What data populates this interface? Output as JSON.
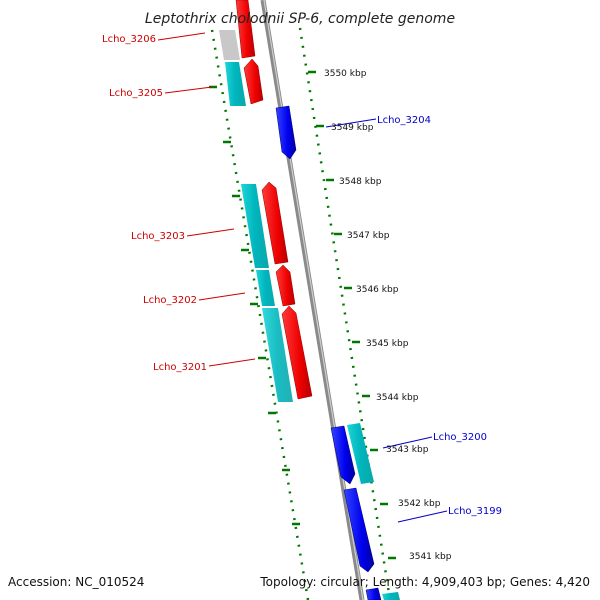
{
  "title": "Leptothrix cholodnii SP-6, complete genome",
  "footer": {
    "accession": "Accession: NC_010524",
    "summary": "Topology: circular; Length: 4,909,403 bp; Genes: 4,420"
  },
  "scale_labels": [
    "3550 kbp",
    "3549 kbp",
    "3548 kbp",
    "3547 kbp",
    "3546 kbp",
    "3545 kbp",
    "3544 kbp",
    "3543 kbp",
    "3542 kbp",
    "3541 kbp"
  ],
  "gene_labels": {
    "lcho_3206": "Lcho_3206",
    "lcho_3205": "Lcho_3205",
    "lcho_3204": "Lcho_3204",
    "lcho_3203": "Lcho_3203",
    "lcho_3202": "Lcho_3202",
    "lcho_3201": "Lcho_3201",
    "lcho_3200": "Lcho_3200",
    "lcho_3199": "Lcho_3199"
  },
  "colors": {
    "forward_strand": "#ff0000",
    "reverse_strand": "#0000ff",
    "gc_content": "#00b8c0",
    "backbone": "#8a8a8a",
    "ticks": "#007700",
    "label_red": "#cc0000",
    "label_blue": "#0000cc"
  }
}
